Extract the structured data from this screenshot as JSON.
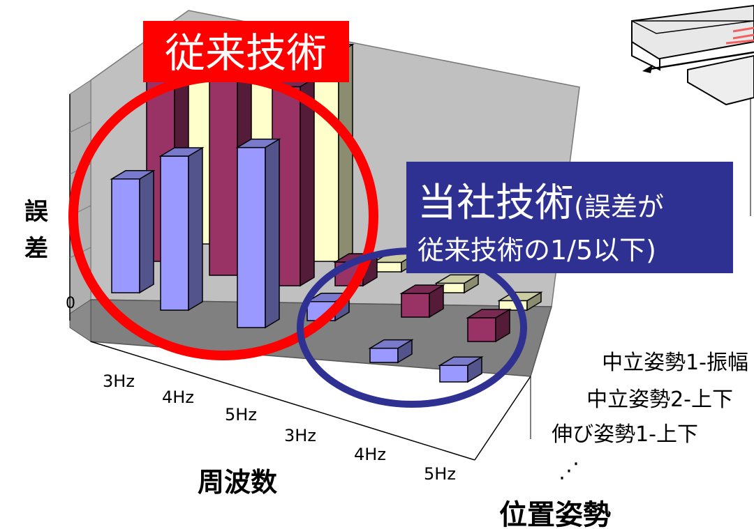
{
  "chart_data": {
    "type": "bar",
    "subtype": "3d-bar",
    "title": "",
    "ylabel": "誤差",
    "xlabel": "周波数",
    "zlabel": "位置姿勢",
    "y_tick_labels": [
      "0"
    ],
    "x_tick_labels": [
      "3Hz",
      "4Hz",
      "5Hz",
      "3Hz",
      "4Hz",
      "5Hz"
    ],
    "groups": [
      "従来技術",
      "従来技術",
      "従来技術",
      "当社技術",
      "当社技術",
      "当社技術"
    ],
    "series": [
      {
        "name": "中立姿勢1-振幅",
        "color": "#9999ff",
        "values": [
          4.8,
          6.5,
          7.6,
          0.8,
          0.6,
          0.7
        ]
      },
      {
        "name": "中立姿勢2-上下",
        "color": "#993366",
        "values": [
          8.5,
          8.6,
          8.4,
          1.0,
          1.0,
          1.0
        ]
      },
      {
        "name": "伸び姿勢1-上下",
        "color": "#ffffcc",
        "values": [
          7.0,
          7.2,
          8.8,
          0.4,
          0.4,
          0.4
        ]
      }
    ],
    "legend_ellipsis": "⋰"
  },
  "annotations": {
    "conventional_label": "従来技術",
    "ours_label_main": "当社技術",
    "ours_label_paren": "(誤差が",
    "ours_label_line2": "従来技術の1/5以下)"
  },
  "colors": {
    "red": "#ff0000",
    "navy": "#2e3192",
    "wall": "#c0c0c0",
    "floor": "#808080"
  }
}
